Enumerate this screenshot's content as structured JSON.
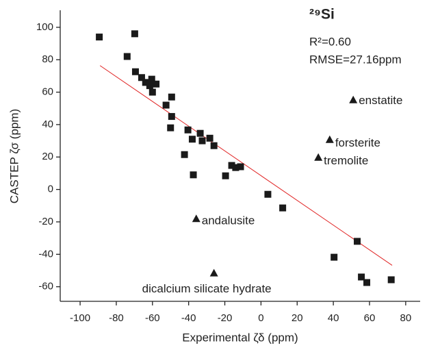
{
  "chart_data": {
    "type": "scatter",
    "title": "²⁹Si",
    "stats": [
      "R²=0.60",
      "RMSE=27.16ppm"
    ],
    "x_label": "Experimental ζδ (ppm)",
    "y_label": "CASTEP ζσ (ppm)",
    "xlim": [
      -111,
      88
    ],
    "ylim": [
      -69,
      110.5
    ],
    "xticks": [
      -100,
      -80,
      -60,
      -40,
      -20,
      0,
      20,
      40,
      60,
      80
    ],
    "yticks": [
      -60,
      -40,
      -20,
      0,
      20,
      40,
      60,
      80,
      100
    ],
    "points": {
      "color": "#1a1a1a",
      "x": [
        -89.4,
        -69.8,
        -74,
        -69.4,
        -66,
        -63.8,
        -61.5,
        -60.4,
        -58,
        -60,
        -52.5,
        -49.4,
        -49.4,
        -50,
        -40.4,
        -38,
        -33.6,
        -32.5,
        -28.3,
        -26,
        -42.3,
        -37.4,
        -19.6,
        -16.2,
        -14,
        -11.3,
        3.8,
        12,
        40.4,
        53.2,
        55.5,
        58.5,
        72
      ],
      "y": [
        94,
        96,
        82,
        72.6,
        69,
        66,
        64,
        68,
        65,
        60,
        52,
        57,
        45,
        38,
        36.7,
        31,
        34.6,
        30,
        31.6,
        27,
        21.5,
        9,
        8.4,
        14.8,
        13.5,
        14,
        -3,
        -11.4,
        -41.8,
        -32,
        -54,
        -57.4,
        -55.7
      ]
    },
    "labeled_points": {
      "color": "#1a1a1a",
      "x": [
        51,
        38,
        31.7,
        -35.8,
        -26
      ],
      "y": [
        55.3,
        30.8,
        19.8,
        -18,
        -51.5
      ],
      "labels": [
        "enstatite",
        "forsterite",
        "tremolite",
        "andalusite",
        "dicalcium silicate hydrate"
      ]
    },
    "fit_line": {
      "color": "#e02020",
      "x": [
        -89,
        72.5
      ],
      "y": [
        76.4,
        -46.8
      ]
    }
  }
}
